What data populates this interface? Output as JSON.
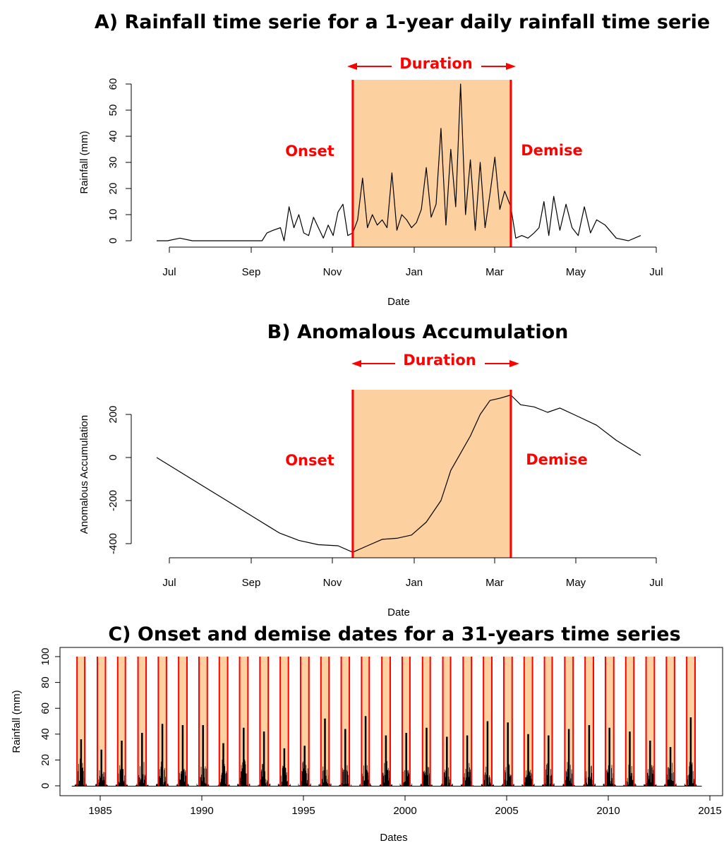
{
  "colors": {
    "season_fill": "#fdd19f",
    "boundary": "#ff0000",
    "series": "#000000"
  },
  "chart_data": [
    {
      "type": "line",
      "title": "A) Rainfall time serie for a 1-year daily rainfall time serie",
      "xlabel": "Date",
      "ylabel": "Rainfall (mm)",
      "x_ticks": [
        "Jul",
        "Sep",
        "Nov",
        "Jan",
        "Mar",
        "May",
        "Jul"
      ],
      "y_ticks": [
        "0",
        "10",
        "20",
        "30",
        "40",
        "50",
        "60"
      ],
      "ylim": [
        0,
        60
      ],
      "xlim": [
        "1999-06-01",
        "2000-06-30"
      ],
      "grid": false,
      "onset": "1999-11-08",
      "demise": "2000-03-16",
      "annotations": {
        "duration": "Duration",
        "onset": "Onset",
        "demise": "Demise"
      },
      "series": [
        {
          "x": [
            "1999-06-01",
            "1999-06-10",
            "1999-06-20",
            "1999-06-30",
            "1999-07-10",
            "1999-07-20",
            "1999-07-30",
            "1999-08-10",
            "1999-08-20",
            "1999-08-26",
            "1999-08-30",
            "1999-09-04",
            "1999-09-10",
            "1999-09-13",
            "1999-09-17",
            "1999-09-21",
            "1999-09-25",
            "1999-09-29",
            "1999-10-03",
            "1999-10-07",
            "1999-10-11",
            "1999-10-15",
            "1999-10-19",
            "1999-10-23",
            "1999-10-27",
            "1999-10-31",
            "1999-11-04",
            "1999-11-08",
            "1999-11-12",
            "1999-11-16",
            "1999-11-20",
            "1999-11-24",
            "1999-11-28",
            "1999-12-02",
            "1999-12-06",
            "1999-12-10",
            "1999-12-14",
            "1999-12-18",
            "1999-12-22",
            "1999-12-26",
            "1999-12-30",
            "2000-01-03",
            "2000-01-07",
            "2000-01-11",
            "2000-01-15",
            "2000-01-19",
            "2000-01-23",
            "2000-01-27",
            "2000-01-31",
            "2000-02-04",
            "2000-02-08",
            "2000-02-12",
            "2000-02-16",
            "2000-02-20",
            "2000-02-24",
            "2000-02-28",
            "2000-03-03",
            "2000-03-07",
            "2000-03-11",
            "2000-03-16",
            "2000-03-20",
            "2000-03-25",
            "2000-03-30",
            "2000-04-04",
            "2000-04-08",
            "2000-04-12",
            "2000-04-16",
            "2000-04-20",
            "2000-04-25",
            "2000-04-30",
            "2000-05-05",
            "2000-05-10",
            "2000-05-15",
            "2000-05-20",
            "2000-05-25",
            "2000-06-01",
            "2000-06-10",
            "2000-06-20",
            "2000-06-30"
          ],
          "y": [
            0,
            0,
            1,
            0,
            0,
            0,
            0,
            0,
            0,
            0,
            3,
            4,
            5,
            0,
            13,
            5,
            10,
            3,
            2,
            9,
            5,
            1,
            6,
            2,
            11,
            14,
            2,
            3,
            8,
            24,
            5,
            10,
            6,
            8,
            5,
            26,
            4,
            10,
            8,
            5,
            7,
            12,
            28,
            9,
            14,
            43,
            6,
            35,
            13,
            60,
            10,
            31,
            4,
            30,
            5,
            18,
            32,
            12,
            19,
            13,
            1,
            2,
            1,
            3,
            5,
            15,
            2,
            17,
            4,
            14,
            5,
            2,
            13,
            3,
            8,
            6,
            1,
            0,
            2
          ]
        }
      ]
    },
    {
      "type": "line",
      "title": "B) Anomalous Accumulation",
      "xlabel": "Date",
      "ylabel": "Anomalous Accumulation",
      "x_ticks": [
        "Jul",
        "Sep",
        "Nov",
        "Jan",
        "Mar",
        "May",
        "Jul"
      ],
      "y_ticks": [
        "-400",
        "-200",
        "0",
        "200"
      ],
      "ylim": [
        -440,
        320
      ],
      "xlim": [
        "1999-06-01",
        "2000-06-30"
      ],
      "grid": false,
      "onset": "1999-11-08",
      "demise": "2000-03-16",
      "annotations": {
        "duration": "Duration",
        "onset": "Onset",
        "demise": "Demise"
      },
      "series": [
        {
          "x": [
            "1999-06-01",
            "1999-06-21",
            "1999-07-11",
            "1999-07-31",
            "1999-08-20",
            "1999-09-09",
            "1999-09-25",
            "1999-10-11",
            "1999-10-27",
            "1999-11-08",
            "1999-11-20",
            "1999-12-02",
            "1999-12-14",
            "1999-12-26",
            "2000-01-07",
            "2000-01-19",
            "2000-01-27",
            "2000-02-04",
            "2000-02-12",
            "2000-02-20",
            "2000-02-28",
            "2000-03-07",
            "2000-03-16",
            "2000-03-24",
            "2000-04-04",
            "2000-04-15",
            "2000-04-25",
            "2000-05-10",
            "2000-05-25",
            "2000-06-10",
            "2000-06-30"
          ],
          "y": [
            0,
            -70,
            -140,
            -210,
            -280,
            -350,
            -385,
            -405,
            -410,
            -440,
            -410,
            -380,
            -375,
            -360,
            -300,
            -200,
            -60,
            20,
            100,
            200,
            265,
            275,
            290,
            245,
            235,
            210,
            230,
            190,
            150,
            80,
            10
          ]
        }
      ]
    },
    {
      "type": "bar",
      "title": "C) Onset and demise dates for a 31-years time series",
      "xlabel": "Dates",
      "ylabel": "Rainfall (mm)",
      "x_ticks": [
        "1985",
        "1990",
        "1995",
        "2000",
        "2005",
        "2010",
        "2015"
      ],
      "y_ticks": [
        "0",
        "20",
        "40",
        "60",
        "80",
        "100"
      ],
      "xlim": [
        1981.5,
        2015.5
      ],
      "ylim": [
        0,
        100
      ],
      "grid": false,
      "seasons": [
        {
          "onset": 1983.86,
          "demise": 1984.24
        },
        {
          "onset": 1984.86,
          "demise": 1985.26
        },
        {
          "onset": 1985.86,
          "demise": 1986.24
        },
        {
          "onset": 1986.86,
          "demise": 1987.26
        },
        {
          "onset": 1987.86,
          "demise": 1988.26
        },
        {
          "onset": 1988.86,
          "demise": 1989.27
        },
        {
          "onset": 1989.86,
          "demise": 1990.27
        },
        {
          "onset": 1990.86,
          "demise": 1991.27
        },
        {
          "onset": 1991.86,
          "demise": 1992.27
        },
        {
          "onset": 1992.86,
          "demise": 1993.27
        },
        {
          "onset": 1993.86,
          "demise": 1994.26
        },
        {
          "onset": 1994.86,
          "demise": 1995.27
        },
        {
          "onset": 1995.86,
          "demise": 1996.26
        },
        {
          "onset": 1996.86,
          "demise": 1997.26
        },
        {
          "onset": 1997.86,
          "demise": 1998.24
        },
        {
          "onset": 1998.86,
          "demise": 1999.27
        },
        {
          "onset": 1999.86,
          "demise": 2000.24
        },
        {
          "onset": 2000.86,
          "demise": 2001.24
        },
        {
          "onset": 2001.86,
          "demise": 2002.24
        },
        {
          "onset": 2002.86,
          "demise": 2003.27
        },
        {
          "onset": 2003.86,
          "demise": 2004.27
        },
        {
          "onset": 2004.86,
          "demise": 2005.27
        },
        {
          "onset": 2005.86,
          "demise": 2006.27
        },
        {
          "onset": 2006.86,
          "demise": 2007.24
        },
        {
          "onset": 2007.86,
          "demise": 2008.27
        },
        {
          "onset": 2008.86,
          "demise": 2009.27
        },
        {
          "onset": 2009.86,
          "demise": 2010.27
        },
        {
          "onset": 2010.86,
          "demise": 2011.26
        },
        {
          "onset": 2011.86,
          "demise": 2012.27
        },
        {
          "onset": 2012.86,
          "demise": 2013.26
        },
        {
          "onset": 2013.86,
          "demise": 2014.27
        }
      ],
      "season_peaks": [
        36,
        28,
        35,
        41,
        48,
        47,
        47,
        33,
        45,
        42,
        29,
        31,
        52,
        44,
        54,
        39,
        41,
        45,
        38,
        39,
        50,
        49,
        40,
        39,
        44,
        47,
        45,
        42,
        35,
        30,
        53
      ]
    }
  ]
}
